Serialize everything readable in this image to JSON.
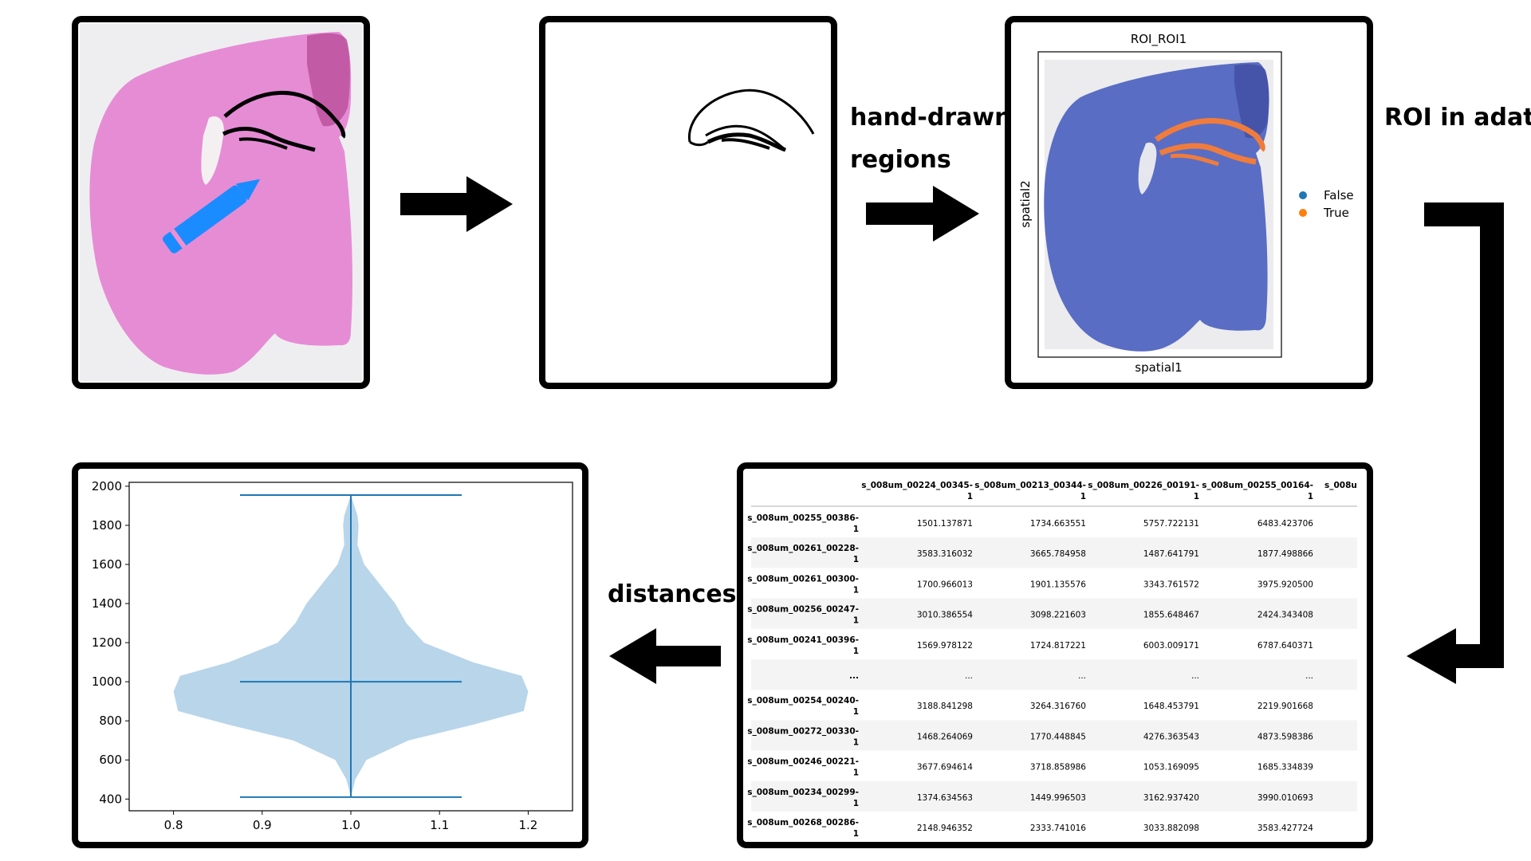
{
  "labels": {
    "hand_drawn_line1": "hand-drawn",
    "hand_drawn_line2": "regions",
    "roi_in_adata": "ROI in adata",
    "distances": "distances"
  },
  "roi_plot": {
    "title": "ROI_ROI1",
    "xlabel": "spatial1",
    "ylabel": "spatial2",
    "legend": [
      {
        "label": "False",
        "color": "#1f77b4"
      },
      {
        "label": "True",
        "color": "#ff7f0e"
      }
    ]
  },
  "distance_table": {
    "columns": [
      "s_008um_00224_00345-1",
      "s_008um_00213_00344-1",
      "s_008um_00226_00191-1",
      "s_008um_00255_00164-1",
      "s_008u"
    ],
    "rows": [
      {
        "index": "s_008um_00255_00386-1",
        "values": [
          "1501.137871",
          "1734.663551",
          "5757.722131",
          "6483.423706"
        ]
      },
      {
        "index": "s_008um_00261_00228-1",
        "values": [
          "3583.316032",
          "3665.784958",
          "1487.641791",
          "1877.498866"
        ]
      },
      {
        "index": "s_008um_00261_00300-1",
        "values": [
          "1700.966013",
          "1901.135576",
          "3343.761572",
          "3975.920500"
        ]
      },
      {
        "index": "s_008um_00256_00247-1",
        "values": [
          "3010.386554",
          "3098.221603",
          "1855.648467",
          "2424.343408"
        ]
      },
      {
        "index": "s_008um_00241_00396-1",
        "values": [
          "1569.978122",
          "1724.817221",
          "6003.009171",
          "6787.640371"
        ]
      },
      {
        "index": "...",
        "values": [
          "...",
          "...",
          "...",
          "..."
        ]
      },
      {
        "index": "s_008um_00254_00240-1",
        "values": [
          "3188.841298",
          "3264.316760",
          "1648.453791",
          "2219.901668"
        ]
      },
      {
        "index": "s_008um_00272_00330-1",
        "values": [
          "1468.264069",
          "1770.448845",
          "4276.363543",
          "4873.598386"
        ]
      },
      {
        "index": "s_008um_00246_00221-1",
        "values": [
          "3677.694614",
          "3718.858986",
          "1053.169095",
          "1685.334839"
        ]
      },
      {
        "index": "s_008um_00234_00299-1",
        "values": [
          "1374.634563",
          "1449.996503",
          "3162.937420",
          "3990.010693"
        ]
      },
      {
        "index": "s_008um_00268_00286-1",
        "values": [
          "2148.946352",
          "2333.741016",
          "3033.882098",
          "3583.427724"
        ]
      }
    ]
  },
  "chart_data": {
    "type": "violin",
    "x_ticks": [
      0.8,
      0.9,
      1.0,
      1.1,
      1.2
    ],
    "y_ticks": [
      400,
      600,
      800,
      1000,
      1200,
      1400,
      1600,
      1800,
      2000
    ],
    "xlim": [
      0.75,
      1.25
    ],
    "ylim": [
      340,
      2020
    ],
    "position": 1.0,
    "min": 410,
    "median": 1000,
    "max": 1955,
    "fill_color": "#b8d5ea",
    "line_color": "#1f77b4",
    "density_profile": [
      [
        410,
        0.0
      ],
      [
        500,
        0.02
      ],
      [
        600,
        0.07
      ],
      [
        700,
        0.26
      ],
      [
        780,
        0.55
      ],
      [
        850,
        0.78
      ],
      [
        950,
        0.8
      ],
      [
        1030,
        0.77
      ],
      [
        1100,
        0.55
      ],
      [
        1200,
        0.33
      ],
      [
        1300,
        0.25
      ],
      [
        1400,
        0.2
      ],
      [
        1500,
        0.13
      ],
      [
        1600,
        0.06
      ],
      [
        1700,
        0.03
      ],
      [
        1800,
        0.035
      ],
      [
        1850,
        0.03
      ],
      [
        1955,
        0.0
      ]
    ]
  }
}
